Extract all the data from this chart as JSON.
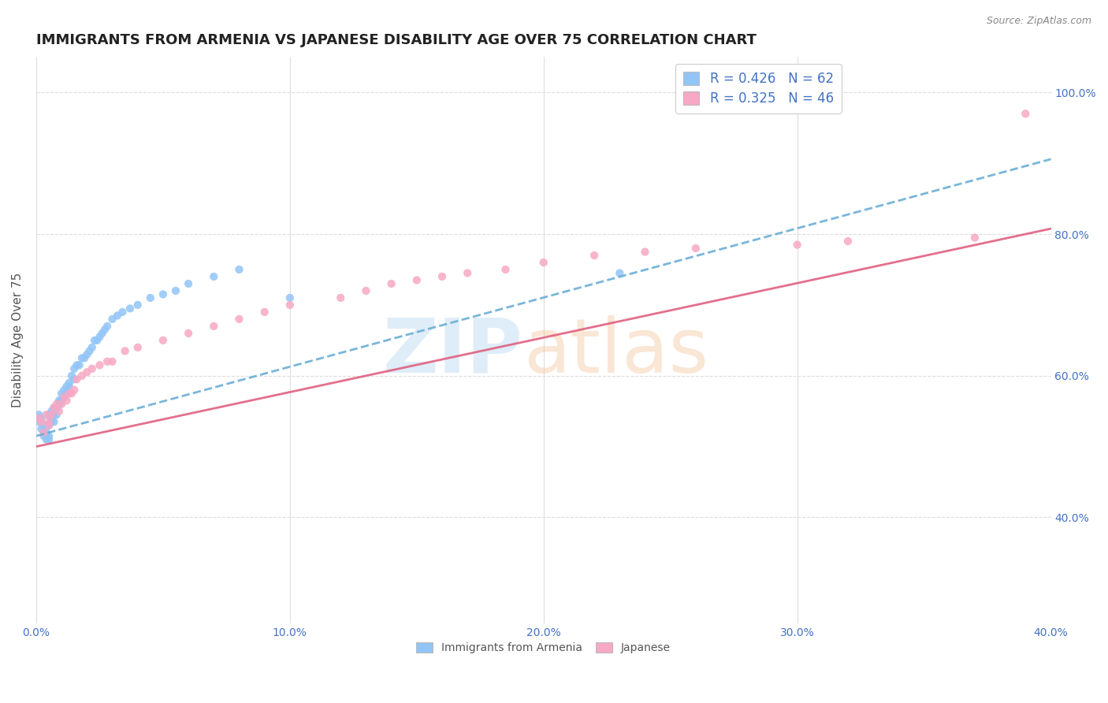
{
  "title": "IMMIGRANTS FROM ARMENIA VS JAPANESE DISABILITY AGE OVER 75 CORRELATION CHART",
  "source": "Source: ZipAtlas.com",
  "ylabel": "Disability Age Over 75",
  "xlim": [
    0.0,
    0.4
  ],
  "ylim": [
    0.25,
    1.05
  ],
  "xtick_labels": [
    "0.0%",
    "",
    "",
    "",
    "",
    "10.0%",
    "",
    "",
    "",
    "",
    "20.0%",
    "",
    "",
    "",
    "",
    "30.0%",
    "",
    "",
    "",
    "",
    "40.0%"
  ],
  "xtick_vals": [
    0.0,
    0.02,
    0.04,
    0.06,
    0.08,
    0.1,
    0.12,
    0.14,
    0.16,
    0.18,
    0.2,
    0.22,
    0.24,
    0.26,
    0.28,
    0.3,
    0.32,
    0.34,
    0.36,
    0.38,
    0.4
  ],
  "ytick_labels": [
    "40.0%",
    "60.0%",
    "80.0%",
    "100.0%"
  ],
  "ytick_vals": [
    0.4,
    0.6,
    0.8,
    1.0
  ],
  "color_armenia": "#92c5f7",
  "color_japanese": "#f7a8c4",
  "color_line_armenia": "#6baed6",
  "color_line_japanese": "#e06080",
  "background_color": "#ffffff",
  "grid_color": "#dddddd",
  "title_fontsize": 13,
  "tick_label_color_right": "#4472c4",
  "tick_label_color_x": "#4472c4",
  "armenia_scatter_x": [
    0.001,
    0.001,
    0.002,
    0.002,
    0.003,
    0.003,
    0.003,
    0.004,
    0.004,
    0.004,
    0.005,
    0.005,
    0.005,
    0.005,
    0.006,
    0.006,
    0.006,
    0.007,
    0.007,
    0.007,
    0.008,
    0.008,
    0.008,
    0.009,
    0.009,
    0.01,
    0.01,
    0.011,
    0.011,
    0.012,
    0.012,
    0.013,
    0.013,
    0.014,
    0.015,
    0.015,
    0.016,
    0.017,
    0.018,
    0.019,
    0.02,
    0.021,
    0.022,
    0.023,
    0.024,
    0.025,
    0.026,
    0.027,
    0.028,
    0.03,
    0.032,
    0.034,
    0.037,
    0.04,
    0.045,
    0.05,
    0.055,
    0.06,
    0.07,
    0.08,
    0.1,
    0.23
  ],
  "armenia_scatter_y": [
    0.545,
    0.535,
    0.54,
    0.525,
    0.53,
    0.52,
    0.515,
    0.52,
    0.51,
    0.515,
    0.515,
    0.51,
    0.53,
    0.545,
    0.535,
    0.54,
    0.55,
    0.535,
    0.545,
    0.555,
    0.555,
    0.545,
    0.555,
    0.565,
    0.56,
    0.565,
    0.575,
    0.57,
    0.58,
    0.575,
    0.585,
    0.585,
    0.59,
    0.6,
    0.595,
    0.61,
    0.615,
    0.615,
    0.625,
    0.625,
    0.63,
    0.635,
    0.64,
    0.65,
    0.65,
    0.655,
    0.66,
    0.665,
    0.67,
    0.68,
    0.685,
    0.69,
    0.695,
    0.7,
    0.71,
    0.715,
    0.72,
    0.73,
    0.74,
    0.75,
    0.71,
    0.745
  ],
  "japanese_scatter_x": [
    0.001,
    0.002,
    0.003,
    0.004,
    0.005,
    0.005,
    0.006,
    0.007,
    0.008,
    0.009,
    0.01,
    0.011,
    0.012,
    0.013,
    0.014,
    0.015,
    0.016,
    0.018,
    0.02,
    0.022,
    0.025,
    0.028,
    0.03,
    0.035,
    0.04,
    0.05,
    0.06,
    0.07,
    0.08,
    0.09,
    0.1,
    0.12,
    0.13,
    0.14,
    0.15,
    0.16,
    0.17,
    0.185,
    0.2,
    0.22,
    0.24,
    0.26,
    0.3,
    0.32,
    0.37,
    0.39
  ],
  "japanese_scatter_y": [
    0.54,
    0.535,
    0.52,
    0.545,
    0.53,
    0.535,
    0.545,
    0.555,
    0.56,
    0.55,
    0.56,
    0.57,
    0.565,
    0.575,
    0.575,
    0.58,
    0.595,
    0.6,
    0.605,
    0.61,
    0.615,
    0.62,
    0.62,
    0.635,
    0.64,
    0.65,
    0.66,
    0.67,
    0.68,
    0.69,
    0.7,
    0.71,
    0.72,
    0.73,
    0.735,
    0.74,
    0.745,
    0.75,
    0.76,
    0.77,
    0.775,
    0.78,
    0.785,
    0.79,
    0.795,
    0.97
  ]
}
